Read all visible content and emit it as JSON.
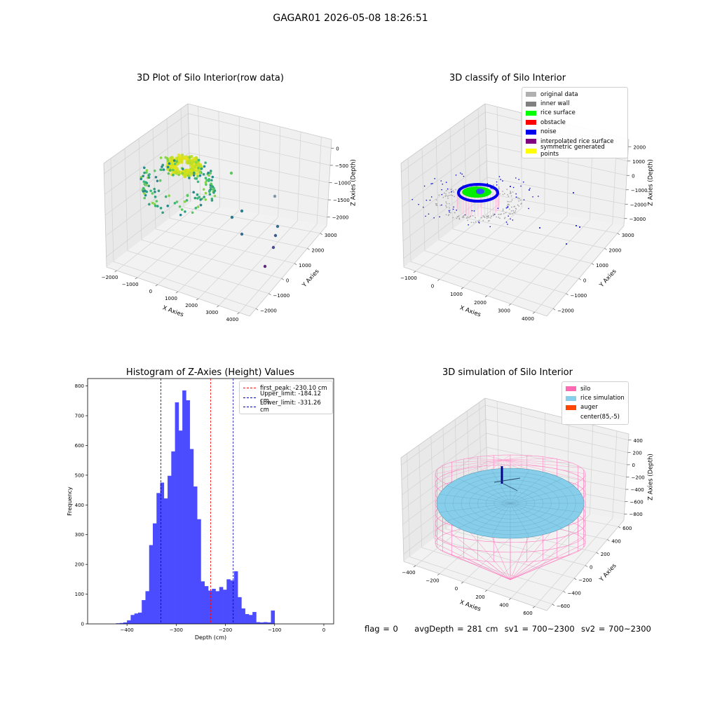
{
  "figure": {
    "title": "GAGAR01 2026-05-08 18:26:51"
  },
  "panels": {
    "raw": {
      "title": "3D Plot of Silo Interior(row data)",
      "xlabel": "X Axies",
      "ylabel": "Y Axies",
      "zlabel": "Z Axies (Depth)",
      "xticks": [
        "−2000",
        "−1000",
        "0",
        "1000",
        "2000",
        "3000",
        "4000"
      ],
      "yticks": [
        "−2000",
        "−1000",
        "0",
        "1000",
        "2000",
        "3000"
      ],
      "zticks": [
        "0",
        "−500",
        "−1000",
        "−1500",
        "−2000"
      ]
    },
    "classify": {
      "title": "3D classify of Silo Interior",
      "xlabel": "X Axies",
      "ylabel": "Y Axies",
      "zlabel": "Z Axies (Depth)",
      "xticks": [
        "−1000",
        "0",
        "1000",
        "2000",
        "3000",
        "4000"
      ],
      "yticks": [
        "−2000",
        "−1000",
        "0",
        "1000",
        "2000",
        "3000"
      ],
      "zticks": [
        "2000",
        "1000",
        "0",
        "−1000",
        "−2000",
        "−3000"
      ],
      "legend": [
        {
          "label": "original data",
          "color": "#b0b0b0"
        },
        {
          "label": "inner wall",
          "color": "#808080"
        },
        {
          "label": "rice surface",
          "color": "#00ff00"
        },
        {
          "label": "obstacle",
          "color": "#ff0000"
        },
        {
          "label": "noise",
          "color": "#0000ee"
        },
        {
          "label": "interpolated rice surface",
          "color": "#800080"
        },
        {
          "label": "symmetric generated points",
          "color": "#ffff00"
        }
      ]
    },
    "simulation": {
      "title": "3D simulation of Silo Interior",
      "xlabel": "X Axies",
      "ylabel": "Y Axies",
      "zlabel": "Z Axies (Depth)",
      "xticks": [
        "−400",
        "−200",
        "0",
        "200",
        "400",
        "600"
      ],
      "yticks": [
        "−600",
        "−400",
        "−200",
        "0",
        "200",
        "400",
        "600"
      ],
      "zticks": [
        "400",
        "200",
        "0",
        "−200",
        "−400",
        "−600",
        "−800"
      ],
      "legend": [
        {
          "label": "silo",
          "color": "#ff69b4"
        },
        {
          "label": "rice simulation",
          "color": "#87ceeb"
        },
        {
          "label": "auger",
          "color": "#ff4500"
        },
        {
          "label": "center(85,-5)",
          "color": ""
        }
      ]
    }
  },
  "chart_data": [
    {
      "type": "scatter",
      "title": "3D Plot of Silo Interior(row data)",
      "xlabel": "X Axies",
      "ylabel": "Y Axies",
      "zlabel": "Z Axies (Depth)",
      "xlim": [
        -2000,
        4000
      ],
      "ylim": [
        -2000,
        3000
      ],
      "zlim": [
        -2000,
        0
      ],
      "colormap": "viridis",
      "grid": true
    },
    {
      "type": "scatter",
      "title": "3D classify of Silo Interior",
      "xlabel": "X Axies",
      "ylabel": "Y Axies",
      "zlabel": "Z Axies (Depth)",
      "xlim": [
        -1000,
        4000
      ],
      "ylim": [
        -2000,
        3000
      ],
      "zlim": [
        -3000,
        2000
      ],
      "legend_position": "top-right",
      "series": [
        {
          "name": "original data",
          "color": "#b0b0b0"
        },
        {
          "name": "inner wall",
          "color": "#808080"
        },
        {
          "name": "rice surface",
          "color": "#00ff00"
        },
        {
          "name": "obstacle",
          "color": "#ff0000"
        },
        {
          "name": "noise",
          "color": "#0000ee"
        },
        {
          "name": "interpolated rice surface",
          "color": "#800080"
        },
        {
          "name": "symmetric generated points",
          "color": "#ffff00"
        }
      ]
    },
    {
      "type": "bar",
      "title": "Histogram of Z-Axies (Height) Values",
      "xlabel": "Depth (cm)",
      "ylabel": "Frequency",
      "xlim": [
        -480,
        20
      ],
      "ylim": [
        0,
        825
      ],
      "xticks": [
        -400,
        -300,
        -200,
        -100,
        0
      ],
      "yticks": [
        0,
        100,
        200,
        300,
        400,
        500,
        600,
        700,
        800
      ],
      "bar_color": "#4b4bff",
      "bin_start": -460,
      "bin_width": 7.5,
      "values": [
        0,
        0,
        0,
        0,
        0,
        2,
        3,
        5,
        12,
        30,
        35,
        38,
        80,
        110,
        265,
        338,
        440,
        475,
        422,
        498,
        580,
        745,
        650,
        785,
        752,
        588,
        462,
        352,
        143,
        127,
        112,
        118,
        110,
        124,
        115,
        150,
        146,
        177,
        90,
        52,
        33,
        30,
        40,
        6,
        5,
        6,
        5,
        45
      ],
      "vlines": [
        {
          "label": "first_peak: -230.10 cm",
          "x": -230.1,
          "color": "#ff0000"
        },
        {
          "label": "Upper_limit: -184.12 cm",
          "x": -184.12,
          "color": "#0000aa"
        },
        {
          "label": "Lower_limit: -331.26 cm",
          "x": -331.26,
          "color": "#0000aa"
        }
      ],
      "legend_position": "top-right"
    },
    {
      "type": "surface",
      "title": "3D simulation of Silo Interior",
      "xlabel": "X Axies",
      "ylabel": "Y Axies",
      "zlabel": "Z Axies (Depth)",
      "xlim": [
        -600,
        700
      ],
      "ylim": [
        -700,
        700
      ],
      "zlim": [
        -900,
        450
      ],
      "series": [
        {
          "name": "silo",
          "color": "#ff69b4"
        },
        {
          "name": "rice simulation",
          "color": "#87ceeb"
        },
        {
          "name": "auger",
          "color": "#ff4500"
        },
        {
          "name": "center(85,-5)"
        }
      ],
      "legend_position": "top-right"
    }
  ],
  "status": {
    "flag": "flag = 0",
    "avg_depth": "avgDepth = 281 cm",
    "sv1": "sv1 = 700~2300",
    "sv2": "sv2 = 700~2300"
  }
}
